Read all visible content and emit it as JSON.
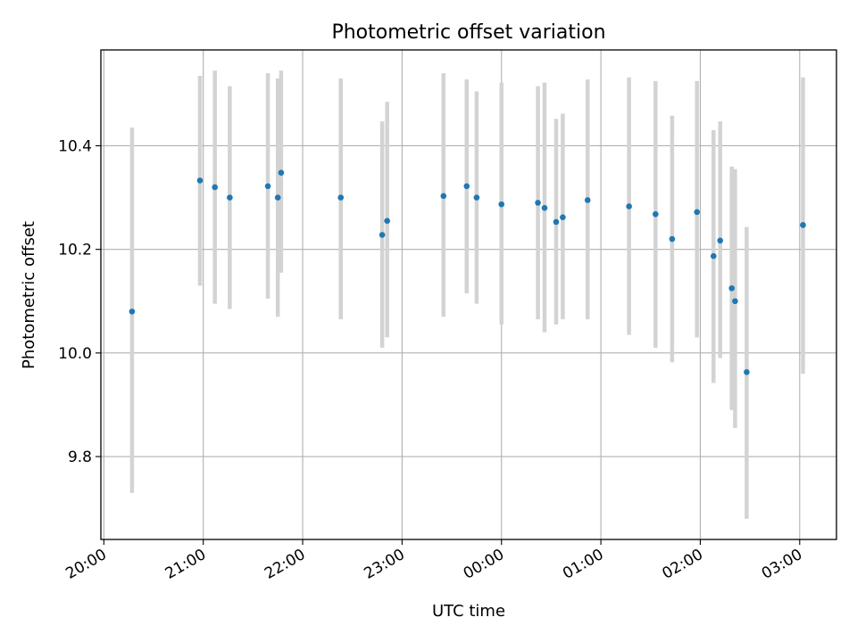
{
  "chart_data": {
    "type": "scatter",
    "title": "Photometric offset variation",
    "xlabel": "UTC time",
    "ylabel": "Photometric offset",
    "x_ticks": [
      "20:00",
      "21:00",
      "22:00",
      "23:00",
      "00:00",
      "01:00",
      "02:00",
      "03:00"
    ],
    "x_tick_hours": [
      0,
      1,
      2,
      3,
      4,
      5,
      6,
      7
    ],
    "xlim_hours": [
      -0.03,
      7.37
    ],
    "x_reference": "20:00",
    "y_ticks": [
      "9.8",
      "10.0",
      "10.2",
      "10.4"
    ],
    "y_tick_values": [
      9.8,
      10.0,
      10.2,
      10.4
    ],
    "ylim": [
      9.64,
      10.585
    ],
    "grid": true,
    "colors": {
      "point": "#1f77b4",
      "errorbar": "#d3d3d3",
      "grid": "#b0b0b0"
    },
    "points": [
      {
        "t": "20:17",
        "y": 10.08,
        "lo": 9.73,
        "hi": 10.435
      },
      {
        "t": "20:58",
        "y": 10.333,
        "lo": 10.13,
        "hi": 10.535
      },
      {
        "t": "21:07",
        "y": 10.32,
        "lo": 10.095,
        "hi": 10.545
      },
      {
        "t": "21:16",
        "y": 10.3,
        "lo": 10.085,
        "hi": 10.515
      },
      {
        "t": "21:39",
        "y": 10.322,
        "lo": 10.105,
        "hi": 10.54
      },
      {
        "t": "21:45",
        "y": 10.3,
        "lo": 10.07,
        "hi": 10.53
      },
      {
        "t": "21:47",
        "y": 10.348,
        "lo": 10.155,
        "hi": 10.545
      },
      {
        "t": "22:23",
        "y": 10.3,
        "lo": 10.065,
        "hi": 10.53
      },
      {
        "t": "22:48",
        "y": 10.228,
        "lo": 10.01,
        "hi": 10.447
      },
      {
        "t": "22:51",
        "y": 10.255,
        "lo": 10.03,
        "hi": 10.485
      },
      {
        "t": "23:25",
        "y": 10.303,
        "lo": 10.07,
        "hi": 10.54
      },
      {
        "t": "23:39",
        "y": 10.322,
        "lo": 10.115,
        "hi": 10.528
      },
      {
        "t": "23:45",
        "y": 10.3,
        "lo": 10.095,
        "hi": 10.505
      },
      {
        "t": "00:00",
        "y": 10.287,
        "lo": 10.055,
        "hi": 10.522
      },
      {
        "t": "00:22",
        "y": 10.29,
        "lo": 10.065,
        "hi": 10.515
      },
      {
        "t": "00:26",
        "y": 10.28,
        "lo": 10.04,
        "hi": 10.522
      },
      {
        "t": "00:33",
        "y": 10.253,
        "lo": 10.055,
        "hi": 10.452
      },
      {
        "t": "00:37",
        "y": 10.262,
        "lo": 10.065,
        "hi": 10.462
      },
      {
        "t": "00:52",
        "y": 10.295,
        "lo": 10.065,
        "hi": 10.528
      },
      {
        "t": "01:17",
        "y": 10.283,
        "lo": 10.035,
        "hi": 10.532
      },
      {
        "t": "01:33",
        "y": 10.268,
        "lo": 10.01,
        "hi": 10.525
      },
      {
        "t": "01:43",
        "y": 10.22,
        "lo": 9.982,
        "hi": 10.458
      },
      {
        "t": "01:58",
        "y": 10.272,
        "lo": 10.03,
        "hi": 10.525
      },
      {
        "t": "02:08",
        "y": 10.187,
        "lo": 9.942,
        "hi": 10.43
      },
      {
        "t": "02:12",
        "y": 10.217,
        "lo": 9.99,
        "hi": 10.447
      },
      {
        "t": "02:19",
        "y": 10.125,
        "lo": 9.89,
        "hi": 10.36
      },
      {
        "t": "02:21",
        "y": 10.1,
        "lo": 9.855,
        "hi": 10.355
      },
      {
        "t": "02:28",
        "y": 9.963,
        "lo": 9.68,
        "hi": 10.243
      },
      {
        "t": "03:02",
        "y": 10.247,
        "lo": 9.96,
        "hi": 10.532
      }
    ]
  }
}
